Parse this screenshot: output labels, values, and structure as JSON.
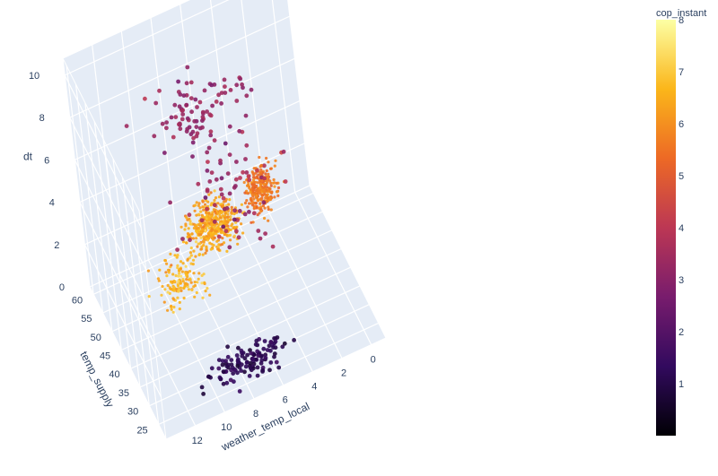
{
  "chart_data": {
    "type": "scatter3d",
    "axes": {
      "x": {
        "label": "weather_temp_local",
        "range": [
          -1,
          14
        ],
        "ticks": [
          0,
          2,
          4,
          6,
          8,
          10,
          12
        ]
      },
      "y": {
        "label": "temp_supply",
        "range": [
          21,
          62
        ],
        "ticks": [
          25,
          30,
          35,
          40,
          45,
          50,
          55,
          60
        ]
      },
      "z": {
        "label": "dt",
        "range": [
          0,
          10.8
        ],
        "ticks": [
          0,
          2,
          4,
          6,
          8,
          10
        ]
      }
    },
    "color": {
      "label": "cop_instant",
      "range": [
        0,
        8
      ],
      "ticks": [
        1,
        2,
        3,
        4,
        5,
        6,
        7,
        8
      ],
      "colorscale": [
        "#000004",
        "#320a5e",
        "#781c6d",
        "#bc3754",
        "#ed6925",
        "#fbb61a",
        "#fcffa4"
      ]
    },
    "series": [
      {
        "clusters": [
          {
            "x": 6.5,
            "y": 52,
            "z": 2.3,
            "sx": 1.8,
            "sy": 4.0,
            "sz": 1.0,
            "c": 6.4,
            "sc": 0.8,
            "n": 430
          },
          {
            "x": 3.0,
            "y": 53,
            "z": 2.7,
            "sx": 1.2,
            "sy": 3.0,
            "sz": 1.0,
            "c": 5.6,
            "sc": 0.7,
            "n": 260
          },
          {
            "x": 9.5,
            "y": 47,
            "z": 1.5,
            "sx": 1.5,
            "sy": 5.0,
            "sz": 0.9,
            "c": 6.6,
            "sc": 0.7,
            "n": 140
          },
          {
            "x": 7.0,
            "y": 48,
            "z": 8.6,
            "sx": 3.5,
            "sy": 7.0,
            "sz": 1.0,
            "c": 3.3,
            "sc": 0.6,
            "n": 90
          },
          {
            "x": 7.5,
            "y": 28,
            "z": 0.4,
            "sx": 3.0,
            "sy": 4.0,
            "sz": 0.4,
            "c": 1.2,
            "sc": 0.6,
            "n": 120
          },
          {
            "x": 6.0,
            "y": 45,
            "z": 5.0,
            "sx": 3.5,
            "sy": 8.0,
            "sz": 2.2,
            "c": 3.5,
            "sc": 1.0,
            "n": 70
          }
        ]
      }
    ]
  }
}
